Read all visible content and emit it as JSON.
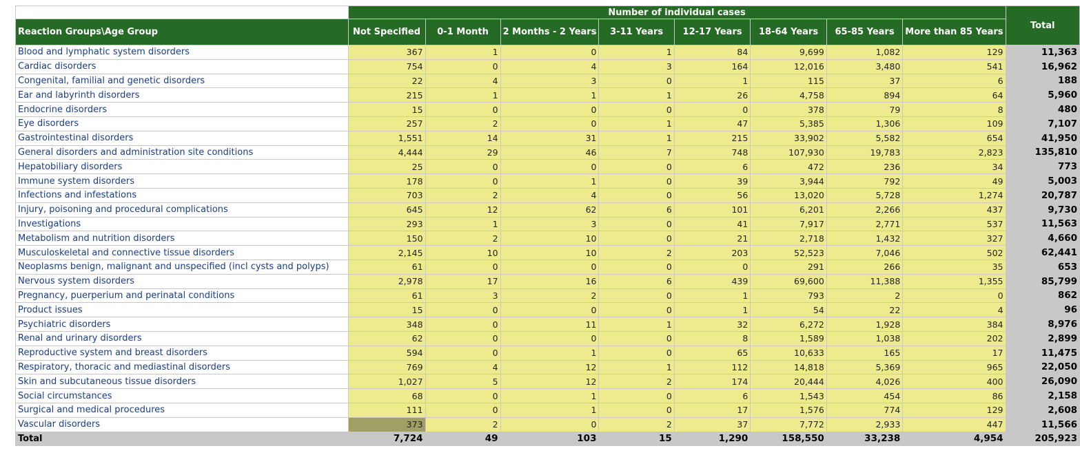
{
  "table": {
    "group_header": "Number of individual cases",
    "row_header": "Reaction Groups\\Age Group",
    "columns": [
      "Not Specified",
      "0-1 Month",
      "2 Months - 2 Years",
      "3-11 Years",
      "12-17 Years",
      "18-64 Years",
      "65-85 Years",
      "More than 85 Years"
    ],
    "total_header": "Total",
    "highlight_color": "#eeeb8e",
    "selected_cell_color": "#a1a064",
    "header_color": "#256b25",
    "rows": [
      {
        "label": "Blood and lymphatic system disorders",
        "values": [
          "367",
          "1",
          "0",
          "1",
          "84",
          "9,699",
          "1,082",
          "129"
        ],
        "total": "11,363"
      },
      {
        "label": "Cardiac disorders",
        "values": [
          "754",
          "0",
          "4",
          "3",
          "164",
          "12,016",
          "3,480",
          "541"
        ],
        "total": "16,962"
      },
      {
        "label": "Congenital, familial and genetic disorders",
        "values": [
          "22",
          "4",
          "3",
          "0",
          "1",
          "115",
          "37",
          "6"
        ],
        "total": "188"
      },
      {
        "label": "Ear and labyrinth disorders",
        "values": [
          "215",
          "1",
          "1",
          "1",
          "26",
          "4,758",
          "894",
          "64"
        ],
        "total": "5,960"
      },
      {
        "label": "Endocrine disorders",
        "values": [
          "15",
          "0",
          "0",
          "0",
          "0",
          "378",
          "79",
          "8"
        ],
        "total": "480"
      },
      {
        "label": "Eye disorders",
        "values": [
          "257",
          "2",
          "0",
          "1",
          "47",
          "5,385",
          "1,306",
          "109"
        ],
        "total": "7,107"
      },
      {
        "label": "Gastrointestinal disorders",
        "values": [
          "1,551",
          "14",
          "31",
          "1",
          "215",
          "33,902",
          "5,582",
          "654"
        ],
        "total": "41,950"
      },
      {
        "label": "General disorders and administration site conditions",
        "values": [
          "4,444",
          "29",
          "46",
          "7",
          "748",
          "107,930",
          "19,783",
          "2,823"
        ],
        "total": "135,810"
      },
      {
        "label": "Hepatobiliary disorders",
        "values": [
          "25",
          "0",
          "0",
          "0",
          "6",
          "472",
          "236",
          "34"
        ],
        "total": "773"
      },
      {
        "label": "Immune system disorders",
        "values": [
          "178",
          "0",
          "1",
          "0",
          "39",
          "3,944",
          "792",
          "49"
        ],
        "total": "5,003"
      },
      {
        "label": "Infections and infestations",
        "values": [
          "703",
          "2",
          "4",
          "0",
          "56",
          "13,020",
          "5,728",
          "1,274"
        ],
        "total": "20,787"
      },
      {
        "label": "Injury, poisoning and procedural complications",
        "values": [
          "645",
          "12",
          "62",
          "6",
          "101",
          "6,201",
          "2,266",
          "437"
        ],
        "total": "9,730"
      },
      {
        "label": "Investigations",
        "values": [
          "293",
          "1",
          "3",
          "0",
          "41",
          "7,917",
          "2,771",
          "537"
        ],
        "total": "11,563"
      },
      {
        "label": "Metabolism and nutrition disorders",
        "values": [
          "150",
          "2",
          "10",
          "0",
          "21",
          "2,718",
          "1,432",
          "327"
        ],
        "total": "4,660"
      },
      {
        "label": "Musculoskeletal and connective tissue disorders",
        "values": [
          "2,145",
          "10",
          "10",
          "2",
          "203",
          "52,523",
          "7,046",
          "502"
        ],
        "total": "62,441"
      },
      {
        "label": "Neoplasms benign, malignant and unspecified (incl cysts and polyps)",
        "values": [
          "61",
          "0",
          "0",
          "0",
          "0",
          "291",
          "266",
          "35"
        ],
        "total": "653"
      },
      {
        "label": "Nervous system disorders",
        "values": [
          "2,978",
          "17",
          "16",
          "6",
          "439",
          "69,600",
          "11,388",
          "1,355"
        ],
        "total": "85,799"
      },
      {
        "label": "Pregnancy, puerperium and perinatal conditions",
        "values": [
          "61",
          "3",
          "2",
          "0",
          "1",
          "793",
          "2",
          "0"
        ],
        "total": "862"
      },
      {
        "label": "Product issues",
        "values": [
          "15",
          "0",
          "0",
          "0",
          "1",
          "54",
          "22",
          "4"
        ],
        "total": "96"
      },
      {
        "label": "Psychiatric disorders",
        "values": [
          "348",
          "0",
          "11",
          "1",
          "32",
          "6,272",
          "1,928",
          "384"
        ],
        "total": "8,976"
      },
      {
        "label": "Renal and urinary disorders",
        "values": [
          "62",
          "0",
          "0",
          "0",
          "8",
          "1,589",
          "1,038",
          "202"
        ],
        "total": "2,899"
      },
      {
        "label": "Reproductive system and breast disorders",
        "values": [
          "594",
          "0",
          "1",
          "0",
          "65",
          "10,633",
          "165",
          "17"
        ],
        "total": "11,475"
      },
      {
        "label": "Respiratory, thoracic and mediastinal disorders",
        "values": [
          "769",
          "4",
          "12",
          "1",
          "112",
          "14,818",
          "5,369",
          "965"
        ],
        "total": "22,050"
      },
      {
        "label": "Skin and subcutaneous tissue disorders",
        "values": [
          "1,027",
          "5",
          "12",
          "2",
          "174",
          "20,444",
          "4,026",
          "400"
        ],
        "total": "26,090"
      },
      {
        "label": "Social circumstances",
        "values": [
          "68",
          "0",
          "1",
          "0",
          "6",
          "1,543",
          "454",
          "86"
        ],
        "total": "2,158"
      },
      {
        "label": "Surgical and medical procedures",
        "values": [
          "111",
          "0",
          "1",
          "0",
          "17",
          "1,576",
          "774",
          "129"
        ],
        "total": "2,608"
      },
      {
        "label": "Vascular disorders",
        "values": [
          "373",
          "2",
          "0",
          "2",
          "37",
          "7,772",
          "2,933",
          "447"
        ],
        "total": "11,566",
        "selected_col": 0
      }
    ],
    "totals": {
      "label": "Total",
      "values": [
        "7,724",
        "49",
        "103",
        "15",
        "1,290",
        "158,550",
        "33,238",
        "4,954"
      ],
      "total": "205,923"
    }
  }
}
